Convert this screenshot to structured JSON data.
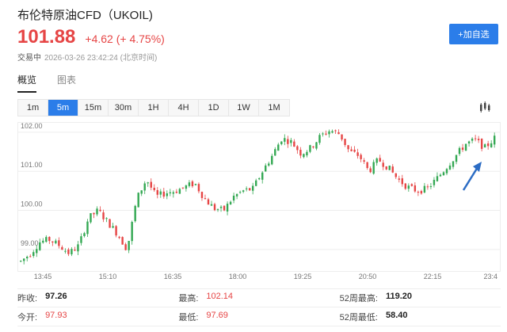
{
  "header": {
    "title": "布伦特原油CFD（UKOIL)",
    "price": "101.88",
    "change": "+4.62 (+ 4.75%)",
    "status": "交易中",
    "timestamp": "2026-03-26 23:42:24 (北京时间)",
    "watch_button": "+加自选"
  },
  "tabs": [
    {
      "label": "概览",
      "active": true
    },
    {
      "label": "图表",
      "active": false
    }
  ],
  "intervals": [
    {
      "label": "1m",
      "active": false
    },
    {
      "label": "5m",
      "active": true
    },
    {
      "label": "15m",
      "active": false
    },
    {
      "label": "30m",
      "active": false
    },
    {
      "label": "1H",
      "active": false
    },
    {
      "label": "4H",
      "active": false
    },
    {
      "label": "1D",
      "active": false
    },
    {
      "label": "1W",
      "active": false
    },
    {
      "label": "1M",
      "active": false
    }
  ],
  "chart_data": {
    "type": "candlestick",
    "y_ticks": [
      "102.00",
      "101.00",
      "100.00",
      "99.00"
    ],
    "y_tick_values": [
      102.0,
      101.0,
      100.0,
      99.0
    ],
    "ylim": [
      98.45,
      102.18
    ],
    "x_ticks": [
      "13:45",
      "15:10",
      "16:35",
      "18:00",
      "19:25",
      "20:50",
      "22:15",
      "23:4"
    ],
    "grid": "horizontal",
    "up_color": "#34a853",
    "down_color": "#e64545",
    "annotation_color": "#2b6cc4",
    "annotation": "arrow",
    "close_path": [
      98.7,
      98.9,
      99.2,
      99.25,
      99.1,
      98.9,
      99.1,
      99.8,
      100.0,
      99.7,
      99.4,
      99.0,
      100.3,
      100.8,
      100.35,
      100.45,
      100.5,
      100.6,
      100.7,
      100.3,
      100.05,
      100.0,
      100.35,
      100.5,
      100.55,
      101.0,
      101.4,
      101.85,
      101.75,
      101.45,
      101.6,
      101.9,
      102.05,
      101.95,
      101.5,
      101.4,
      101.0,
      101.3,
      101.1,
      100.8,
      100.6,
      100.5,
      100.55,
      100.8,
      101.1,
      101.4,
      101.7,
      101.8,
      101.6,
      101.85
    ]
  },
  "stats": [
    [
      {
        "label": "昨收:",
        "value": "97.26",
        "style": "bold"
      },
      {
        "label": "最高:",
        "value": "102.14",
        "style": "red"
      },
      {
        "label": "52周最高:",
        "value": "119.20",
        "style": "bold"
      }
    ],
    [
      {
        "label": "今开:",
        "value": "97.93",
        "style": "red"
      },
      {
        "label": "最低:",
        "value": "97.69",
        "style": "red"
      },
      {
        "label": "52周最低:",
        "value": "58.40",
        "style": "bold"
      }
    ]
  ]
}
